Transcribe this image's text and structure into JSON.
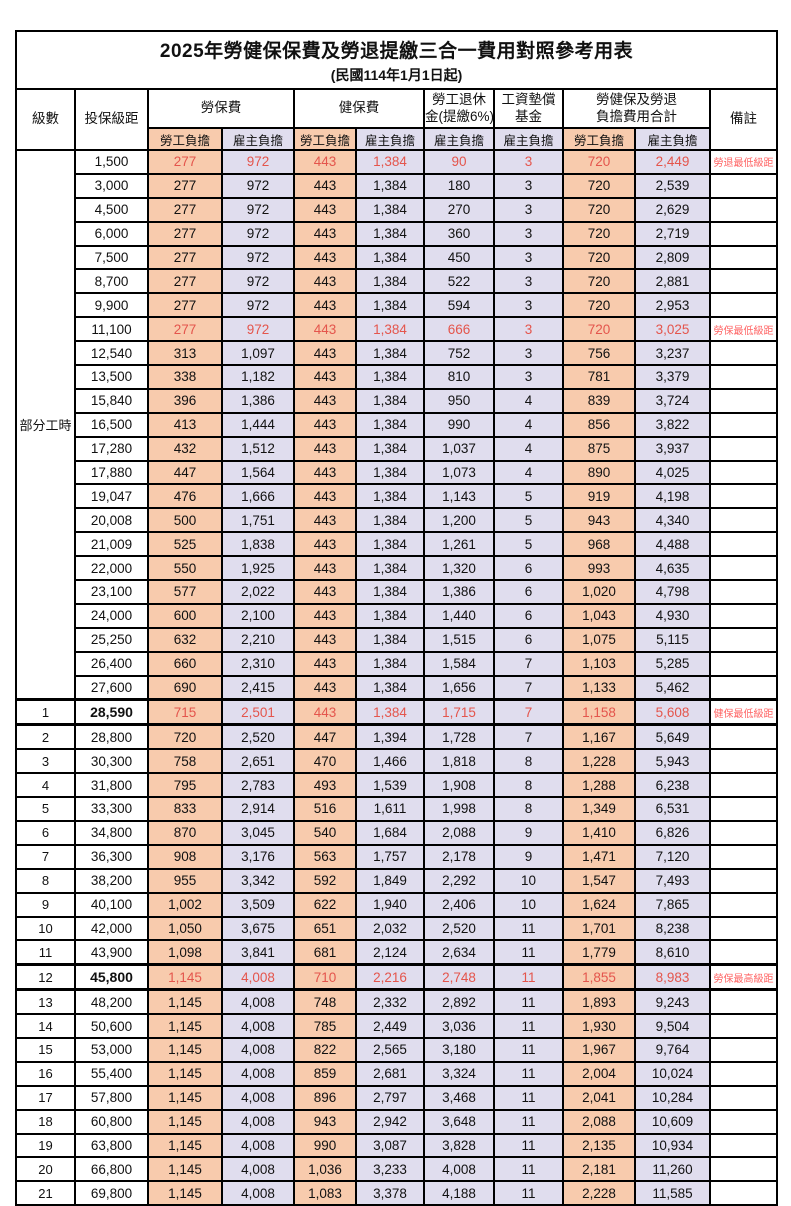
{
  "page": {
    "title": "2025年勞健保保費及勞退提繳三合一費用對照參考用表",
    "subtitle": "(民國114年1月1日起)"
  },
  "header": {
    "level": "級數",
    "bracket": "投保級距",
    "labor_insurance": "勞保費",
    "health_insurance": "健保費",
    "pension_line1": "勞工退休",
    "pension_line2": "金(提繳6%)",
    "wage_fund_line1": "工資墊償",
    "wage_fund_line2": "基金",
    "total_line1": "勞健保及勞退",
    "total_line2": "負擔費用合計",
    "remark": "備註",
    "employee": "勞工負擔",
    "employer": "雇主負擔"
  },
  "colors": {
    "employee_bg": "#F8CBAD",
    "employer_bg": "#E0DDEE",
    "highlight_text": "#E4554C",
    "remark_text": "#FF6363",
    "border": "#000000"
  },
  "part_time_label": "部分工時",
  "rows": [
    {
      "level": "",
      "bracket": "1,500",
      "v": [
        "277",
        "972",
        "443",
        "1,384",
        "90",
        "3",
        "720",
        "2,449"
      ],
      "remark": "勞退最低級距",
      "red": true,
      "hl": false,
      "bold": false
    },
    {
      "level": "",
      "bracket": "3,000",
      "v": [
        "277",
        "972",
        "443",
        "1,384",
        "180",
        "3",
        "720",
        "2,539"
      ],
      "remark": "",
      "red": false,
      "hl": false,
      "bold": false
    },
    {
      "level": "",
      "bracket": "4,500",
      "v": [
        "277",
        "972",
        "443",
        "1,384",
        "270",
        "3",
        "720",
        "2,629"
      ],
      "remark": "",
      "red": false,
      "hl": false,
      "bold": false
    },
    {
      "level": "",
      "bracket": "6,000",
      "v": [
        "277",
        "972",
        "443",
        "1,384",
        "360",
        "3",
        "720",
        "2,719"
      ],
      "remark": "",
      "red": false,
      "hl": false,
      "bold": false
    },
    {
      "level": "",
      "bracket": "7,500",
      "v": [
        "277",
        "972",
        "443",
        "1,384",
        "450",
        "3",
        "720",
        "2,809"
      ],
      "remark": "",
      "red": false,
      "hl": false,
      "bold": false
    },
    {
      "level": "",
      "bracket": "8,700",
      "v": [
        "277",
        "972",
        "443",
        "1,384",
        "522",
        "3",
        "720",
        "2,881"
      ],
      "remark": "",
      "red": false,
      "hl": false,
      "bold": false
    },
    {
      "level": "",
      "bracket": "9,900",
      "v": [
        "277",
        "972",
        "443",
        "1,384",
        "594",
        "3",
        "720",
        "2,953"
      ],
      "remark": "",
      "red": false,
      "hl": false,
      "bold": false
    },
    {
      "level": "",
      "bracket": "11,100",
      "v": [
        "277",
        "972",
        "443",
        "1,384",
        "666",
        "3",
        "720",
        "3,025"
      ],
      "remark": "勞保最低級距",
      "red": true,
      "hl": false,
      "bold": false
    },
    {
      "level": "",
      "bracket": "12,540",
      "v": [
        "313",
        "1,097",
        "443",
        "1,384",
        "752",
        "3",
        "756",
        "3,237"
      ],
      "remark": "",
      "red": false,
      "hl": false,
      "bold": false
    },
    {
      "level": "",
      "bracket": "13,500",
      "v": [
        "338",
        "1,182",
        "443",
        "1,384",
        "810",
        "3",
        "781",
        "3,379"
      ],
      "remark": "",
      "red": false,
      "hl": false,
      "bold": false
    },
    {
      "level": "",
      "bracket": "15,840",
      "v": [
        "396",
        "1,386",
        "443",
        "1,384",
        "950",
        "4",
        "839",
        "3,724"
      ],
      "remark": "",
      "red": false,
      "hl": false,
      "bold": false
    },
    {
      "level": "",
      "bracket": "16,500",
      "v": [
        "413",
        "1,444",
        "443",
        "1,384",
        "990",
        "4",
        "856",
        "3,822"
      ],
      "remark": "",
      "red": false,
      "hl": false,
      "bold": false
    },
    {
      "level": "",
      "bracket": "17,280",
      "v": [
        "432",
        "1,512",
        "443",
        "1,384",
        "1,037",
        "4",
        "875",
        "3,937"
      ],
      "remark": "",
      "red": false,
      "hl": false,
      "bold": false
    },
    {
      "level": "",
      "bracket": "17,880",
      "v": [
        "447",
        "1,564",
        "443",
        "1,384",
        "1,073",
        "4",
        "890",
        "4,025"
      ],
      "remark": "",
      "red": false,
      "hl": false,
      "bold": false
    },
    {
      "level": "",
      "bracket": "19,047",
      "v": [
        "476",
        "1,666",
        "443",
        "1,384",
        "1,143",
        "5",
        "919",
        "4,198"
      ],
      "remark": "",
      "red": false,
      "hl": false,
      "bold": false
    },
    {
      "level": "",
      "bracket": "20,008",
      "v": [
        "500",
        "1,751",
        "443",
        "1,384",
        "1,200",
        "5",
        "943",
        "4,340"
      ],
      "remark": "",
      "red": false,
      "hl": false,
      "bold": false
    },
    {
      "level": "",
      "bracket": "21,009",
      "v": [
        "525",
        "1,838",
        "443",
        "1,384",
        "1,261",
        "5",
        "968",
        "4,488"
      ],
      "remark": "",
      "red": false,
      "hl": false,
      "bold": false
    },
    {
      "level": "",
      "bracket": "22,000",
      "v": [
        "550",
        "1,925",
        "443",
        "1,384",
        "1,320",
        "6",
        "993",
        "4,635"
      ],
      "remark": "",
      "red": false,
      "hl": false,
      "bold": false
    },
    {
      "level": "",
      "bracket": "23,100",
      "v": [
        "577",
        "2,022",
        "443",
        "1,384",
        "1,386",
        "6",
        "1,020",
        "4,798"
      ],
      "remark": "",
      "red": false,
      "hl": false,
      "bold": false
    },
    {
      "level": "",
      "bracket": "24,000",
      "v": [
        "600",
        "2,100",
        "443",
        "1,384",
        "1,440",
        "6",
        "1,043",
        "4,930"
      ],
      "remark": "",
      "red": false,
      "hl": false,
      "bold": false
    },
    {
      "level": "",
      "bracket": "25,250",
      "v": [
        "632",
        "2,210",
        "443",
        "1,384",
        "1,515",
        "6",
        "1,075",
        "5,115"
      ],
      "remark": "",
      "red": false,
      "hl": false,
      "bold": false
    },
    {
      "level": "",
      "bracket": "26,400",
      "v": [
        "660",
        "2,310",
        "443",
        "1,384",
        "1,584",
        "7",
        "1,103",
        "5,285"
      ],
      "remark": "",
      "red": false,
      "hl": false,
      "bold": false
    },
    {
      "level": "",
      "bracket": "27,600",
      "v": [
        "690",
        "2,415",
        "443",
        "1,384",
        "1,656",
        "7",
        "1,133",
        "5,462"
      ],
      "remark": "",
      "red": false,
      "hl": false,
      "bold": false
    },
    {
      "level": "1",
      "bracket": "28,590",
      "v": [
        "715",
        "2,501",
        "443",
        "1,384",
        "1,715",
        "7",
        "1,158",
        "5,608"
      ],
      "remark": "健保最低級距",
      "red": true,
      "hl": true,
      "bold": true
    },
    {
      "level": "2",
      "bracket": "28,800",
      "v": [
        "720",
        "2,520",
        "447",
        "1,394",
        "1,728",
        "7",
        "1,167",
        "5,649"
      ],
      "remark": "",
      "red": false,
      "hl": false,
      "bold": false
    },
    {
      "level": "3",
      "bracket": "30,300",
      "v": [
        "758",
        "2,651",
        "470",
        "1,466",
        "1,818",
        "8",
        "1,228",
        "5,943"
      ],
      "remark": "",
      "red": false,
      "hl": false,
      "bold": false
    },
    {
      "level": "4",
      "bracket": "31,800",
      "v": [
        "795",
        "2,783",
        "493",
        "1,539",
        "1,908",
        "8",
        "1,288",
        "6,238"
      ],
      "remark": "",
      "red": false,
      "hl": false,
      "bold": false
    },
    {
      "level": "5",
      "bracket": "33,300",
      "v": [
        "833",
        "2,914",
        "516",
        "1,611",
        "1,998",
        "8",
        "1,349",
        "6,531"
      ],
      "remark": "",
      "red": false,
      "hl": false,
      "bold": false
    },
    {
      "level": "6",
      "bracket": "34,800",
      "v": [
        "870",
        "3,045",
        "540",
        "1,684",
        "2,088",
        "9",
        "1,410",
        "6,826"
      ],
      "remark": "",
      "red": false,
      "hl": false,
      "bold": false
    },
    {
      "level": "7",
      "bracket": "36,300",
      "v": [
        "908",
        "3,176",
        "563",
        "1,757",
        "2,178",
        "9",
        "1,471",
        "7,120"
      ],
      "remark": "",
      "red": false,
      "hl": false,
      "bold": false
    },
    {
      "level": "8",
      "bracket": "38,200",
      "v": [
        "955",
        "3,342",
        "592",
        "1,849",
        "2,292",
        "10",
        "1,547",
        "7,493"
      ],
      "remark": "",
      "red": false,
      "hl": false,
      "bold": false
    },
    {
      "level": "9",
      "bracket": "40,100",
      "v": [
        "1,002",
        "3,509",
        "622",
        "1,940",
        "2,406",
        "10",
        "1,624",
        "7,865"
      ],
      "remark": "",
      "red": false,
      "hl": false,
      "bold": false
    },
    {
      "level": "10",
      "bracket": "42,000",
      "v": [
        "1,050",
        "3,675",
        "651",
        "2,032",
        "2,520",
        "11",
        "1,701",
        "8,238"
      ],
      "remark": "",
      "red": false,
      "hl": false,
      "bold": false
    },
    {
      "level": "11",
      "bracket": "43,900",
      "v": [
        "1,098",
        "3,841",
        "681",
        "2,124",
        "2,634",
        "11",
        "1,779",
        "8,610"
      ],
      "remark": "",
      "red": false,
      "hl": false,
      "bold": false
    },
    {
      "level": "12",
      "bracket": "45,800",
      "v": [
        "1,145",
        "4,008",
        "710",
        "2,216",
        "2,748",
        "11",
        "1,855",
        "8,983"
      ],
      "remark": "勞保最高級距",
      "red": true,
      "hl": true,
      "bold": true
    },
    {
      "level": "13",
      "bracket": "48,200",
      "v": [
        "1,145",
        "4,008",
        "748",
        "2,332",
        "2,892",
        "11",
        "1,893",
        "9,243"
      ],
      "remark": "",
      "red": false,
      "hl": false,
      "bold": false
    },
    {
      "level": "14",
      "bracket": "50,600",
      "v": [
        "1,145",
        "4,008",
        "785",
        "2,449",
        "3,036",
        "11",
        "1,930",
        "9,504"
      ],
      "remark": "",
      "red": false,
      "hl": false,
      "bold": false
    },
    {
      "level": "15",
      "bracket": "53,000",
      "v": [
        "1,145",
        "4,008",
        "822",
        "2,565",
        "3,180",
        "11",
        "1,967",
        "9,764"
      ],
      "remark": "",
      "red": false,
      "hl": false,
      "bold": false
    },
    {
      "level": "16",
      "bracket": "55,400",
      "v": [
        "1,145",
        "4,008",
        "859",
        "2,681",
        "3,324",
        "11",
        "2,004",
        "10,024"
      ],
      "remark": "",
      "red": false,
      "hl": false,
      "bold": false
    },
    {
      "level": "17",
      "bracket": "57,800",
      "v": [
        "1,145",
        "4,008",
        "896",
        "2,797",
        "3,468",
        "11",
        "2,041",
        "10,284"
      ],
      "remark": "",
      "red": false,
      "hl": false,
      "bold": false
    },
    {
      "level": "18",
      "bracket": "60,800",
      "v": [
        "1,145",
        "4,008",
        "943",
        "2,942",
        "3,648",
        "11",
        "2,088",
        "10,609"
      ],
      "remark": "",
      "red": false,
      "hl": false,
      "bold": false
    },
    {
      "level": "19",
      "bracket": "63,800",
      "v": [
        "1,145",
        "4,008",
        "990",
        "3,087",
        "3,828",
        "11",
        "2,135",
        "10,934"
      ],
      "remark": "",
      "red": false,
      "hl": false,
      "bold": false
    },
    {
      "level": "20",
      "bracket": "66,800",
      "v": [
        "1,145",
        "4,008",
        "1,036",
        "3,233",
        "4,008",
        "11",
        "2,181",
        "11,260"
      ],
      "remark": "",
      "red": false,
      "hl": false,
      "bold": false
    },
    {
      "level": "21",
      "bracket": "69,800",
      "v": [
        "1,145",
        "4,008",
        "1,083",
        "3,378",
        "4,188",
        "11",
        "2,228",
        "11,585"
      ],
      "remark": "",
      "red": false,
      "hl": false,
      "bold": false
    }
  ]
}
